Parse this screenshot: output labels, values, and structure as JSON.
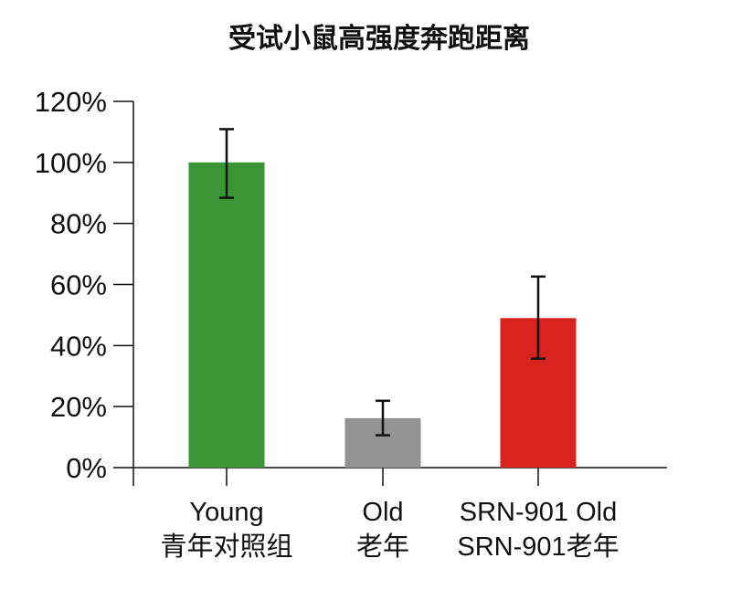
{
  "chart_data": {
    "type": "bar",
    "title": "受试小鼠高强度奔跑距离",
    "xlabel": "",
    "ylabel": "",
    "categories": [
      [
        "Young",
        "青年对照组"
      ],
      [
        "Old",
        "老年"
      ],
      [
        "SRN-901 Old",
        "SRN-901老年"
      ]
    ],
    "values": [
      100,
      16.2,
      49.0
    ],
    "error_low": [
      88.4,
      10.6,
      35.7
    ],
    "error_high": [
      110.9,
      21.9,
      62.6
    ],
    "colors": [
      "#3a9635",
      "#939393",
      "#d8231f"
    ],
    "ylim": [
      0,
      120
    ],
    "yticks": [
      "0%",
      "20%",
      "40%",
      "60%",
      "80%",
      "100%",
      "120%"
    ],
    "grid": false
  }
}
